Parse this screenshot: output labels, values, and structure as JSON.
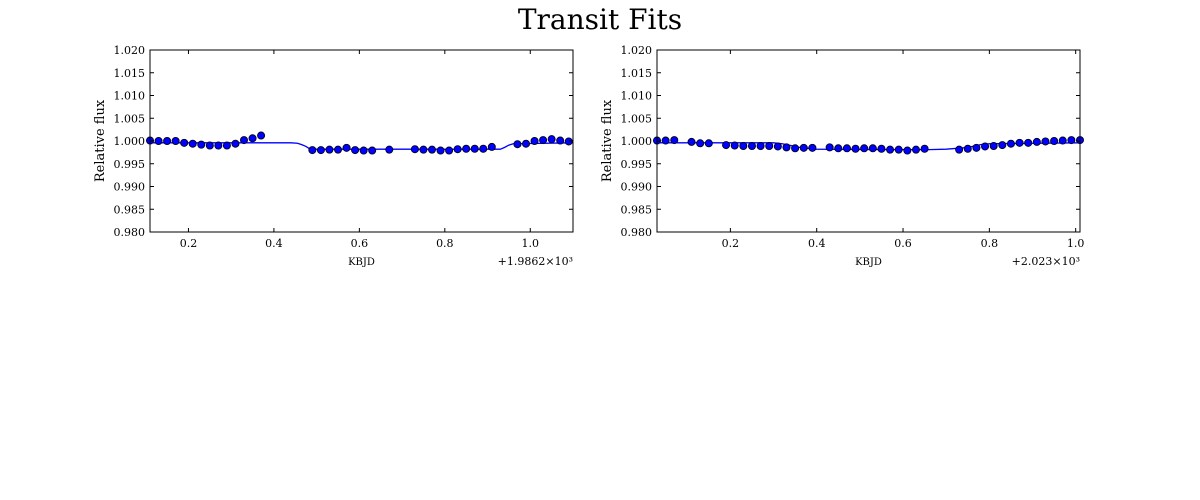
{
  "figure": {
    "title": "Transit Fits"
  },
  "chart_data": [
    {
      "type": "scatter",
      "title": "",
      "xlabel": "KBJD",
      "ylabel": "Relative flux",
      "x_offset_label": "+1.9862×10³",
      "xlim": [
        0.11,
        1.1
      ],
      "ylim": [
        0.98,
        1.02
      ],
      "xticks": [
        0.2,
        0.4,
        0.6,
        0.8,
        1.0
      ],
      "xtick_labels": [
        "0.2",
        "0.4",
        "0.6",
        "0.8",
        "1.0"
      ],
      "yticks": [
        0.98,
        0.985,
        0.99,
        0.995,
        1.0,
        1.005,
        1.01,
        1.015,
        1.02
      ],
      "ytick_labels": [
        "0.980",
        "0.985",
        "0.990",
        "0.995",
        "1.000",
        "1.005",
        "1.010",
        "1.015",
        "1.020"
      ],
      "grid": false,
      "colors": {
        "points": "#0000ff",
        "model": "#0000ff"
      },
      "series": [
        {
          "kind": "points",
          "x": [
            0.11,
            0.13,
            0.15,
            0.17,
            0.19,
            0.21,
            0.23,
            0.25,
            0.27,
            0.29,
            0.31,
            0.33,
            0.35,
            0.37,
            0.49,
            0.51,
            0.53,
            0.55,
            0.57,
            0.59,
            0.61,
            0.63,
            0.67,
            0.73,
            0.75,
            0.77,
            0.79,
            0.81,
            0.83,
            0.85,
            0.87,
            0.89,
            0.91,
            0.97,
            0.99,
            1.01,
            1.03,
            1.05,
            1.07,
            1.09
          ],
          "y": [
            1.0001,
            1.0,
            1.0,
            1.0,
            0.9996,
            0.9994,
            0.9992,
            0.999,
            0.999,
            0.999,
            0.9994,
            1.0002,
            1.0006,
            1.0012,
            0.998,
            0.998,
            0.9981,
            0.9981,
            0.9985,
            0.998,
            0.9979,
            0.9979,
            0.9981,
            0.9982,
            0.9981,
            0.9981,
            0.9979,
            0.9979,
            0.9982,
            0.9983,
            0.9983,
            0.9983,
            0.9987,
            0.9993,
            0.9994,
            1.0,
            1.0002,
            1.0004,
            1.0001,
            0.9999
          ]
        },
        {
          "kind": "model",
          "x": [
            0.11,
            0.44,
            0.455,
            0.465,
            0.475,
            0.485,
            0.93,
            0.94,
            0.95,
            0.96,
            1.1
          ],
          "y": [
            0.9996,
            0.9996,
            0.9995,
            0.9992,
            0.9988,
            0.9982,
            0.9982,
            0.9986,
            0.9991,
            0.9994,
            0.9996
          ]
        }
      ]
    },
    {
      "type": "scatter",
      "title": "",
      "xlabel": "KBJD",
      "ylabel": "Relative flux",
      "x_offset_label": "+2.023×10³",
      "xlim": [
        0.03,
        1.01
      ],
      "ylim": [
        0.98,
        1.02
      ],
      "xticks": [
        0.2,
        0.4,
        0.6,
        0.8,
        1.0
      ],
      "xtick_labels": [
        "0.2",
        "0.4",
        "0.6",
        "0.8",
        "1.0"
      ],
      "yticks": [
        0.98,
        0.985,
        0.99,
        0.995,
        1.0,
        1.005,
        1.01,
        1.015,
        1.02
      ],
      "ytick_labels": [
        "0.980",
        "0.985",
        "0.990",
        "0.995",
        "1.000",
        "1.005",
        "1.010",
        "1.015",
        "1.020"
      ],
      "grid": false,
      "colors": {
        "points": "#0000ff",
        "model": "#0000ff"
      },
      "series": [
        {
          "kind": "points",
          "x": [
            0.03,
            0.05,
            0.07,
            0.11,
            0.13,
            0.15,
            0.19,
            0.21,
            0.23,
            0.25,
            0.27,
            0.29,
            0.31,
            0.33,
            0.35,
            0.37,
            0.39,
            0.43,
            0.45,
            0.47,
            0.49,
            0.51,
            0.53,
            0.55,
            0.57,
            0.59,
            0.61,
            0.63,
            0.65,
            0.73,
            0.75,
            0.77,
            0.79,
            0.81,
            0.83,
            0.85,
            0.87,
            0.89,
            0.91,
            0.93,
            0.95,
            0.97,
            0.99,
            1.01
          ],
          "y": [
            1.0001,
            1.0001,
            1.0002,
            0.9998,
            0.9995,
            0.9995,
            0.9991,
            0.999,
            0.9989,
            0.9989,
            0.9989,
            0.9989,
            0.9988,
            0.9986,
            0.9984,
            0.9985,
            0.9985,
            0.9986,
            0.9984,
            0.9984,
            0.9983,
            0.9984,
            0.9984,
            0.9983,
            0.9981,
            0.9981,
            0.9979,
            0.9981,
            0.9983,
            0.9981,
            0.9983,
            0.9985,
            0.9988,
            0.9989,
            0.9991,
            0.9994,
            0.9996,
            0.9996,
            0.9998,
            0.9999,
            1.0,
            1.0001,
            1.0002,
            1.0002
          ]
        },
        {
          "kind": "model",
          "x": [
            0.03,
            0.3,
            0.32,
            0.34,
            0.36,
            0.4,
            0.62,
            0.66,
            0.7,
            0.74,
            0.76,
            0.78,
            0.8,
            1.01
          ],
          "y": [
            0.9996,
            0.9996,
            0.9994,
            0.999,
            0.9986,
            0.9982,
            0.9981,
            0.9981,
            0.9982,
            0.9985,
            0.9988,
            0.9992,
            0.9994,
            0.9996
          ]
        }
      ]
    }
  ]
}
